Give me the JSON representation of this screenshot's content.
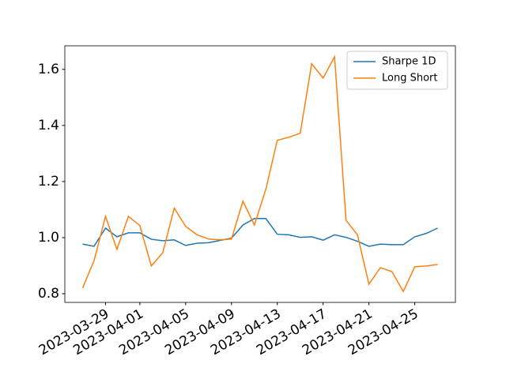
{
  "chart_data": {
    "type": "line",
    "x": [
      "2023-03-27",
      "2023-03-28",
      "2023-03-29",
      "2023-03-30",
      "2023-03-31",
      "2023-04-01",
      "2023-04-02",
      "2023-04-03",
      "2023-04-04",
      "2023-04-05",
      "2023-04-06",
      "2023-04-07",
      "2023-04-08",
      "2023-04-09",
      "2023-04-10",
      "2023-04-11",
      "2023-04-12",
      "2023-04-13",
      "2023-04-14",
      "2023-04-15",
      "2023-04-16",
      "2023-04-17",
      "2023-04-18",
      "2023-04-19",
      "2023-04-20",
      "2023-04-21",
      "2023-04-22",
      "2023-04-23",
      "2023-04-24",
      "2023-04-25",
      "2023-04-26",
      "2023-04-27"
    ],
    "series": [
      {
        "name": "Sharpe 1D",
        "color": "#1f77b4",
        "values": [
          0.977,
          0.969,
          1.034,
          1.003,
          1.017,
          1.017,
          0.994,
          0.989,
          0.992,
          0.972,
          0.98,
          0.982,
          0.99,
          0.998,
          1.045,
          1.068,
          1.068,
          1.012,
          1.01,
          1.001,
          1.003,
          0.991,
          1.01,
          1.001,
          0.987,
          0.969,
          0.977,
          0.975,
          0.975,
          1.003,
          1.015,
          1.034
        ]
      },
      {
        "name": "Long Short",
        "color": "#ff7f0e",
        "values": [
          0.82,
          0.918,
          1.076,
          0.958,
          1.076,
          1.043,
          0.899,
          0.946,
          1.105,
          1.04,
          1.01,
          0.995,
          0.992,
          0.995,
          1.13,
          1.045,
          1.172,
          1.347,
          1.358,
          1.372,
          1.62,
          1.569,
          1.645,
          1.062,
          1.01,
          0.834,
          0.893,
          0.879,
          0.808,
          0.896,
          0.899,
          0.904
        ]
      }
    ],
    "xlim": [
      "2023-03-25T10:48:00",
      "2023-04-28T13:12:00"
    ],
    "xticks": [
      "2023-03-29",
      "2023-04-01",
      "2023-04-05",
      "2023-04-09",
      "2023-04-13",
      "2023-04-17",
      "2023-04-21",
      "2023-04-25"
    ],
    "ylim": [
      0.769,
      1.684
    ],
    "yticks": [
      {
        "value": 0.8,
        "label": "0.8"
      },
      {
        "value": 1.0,
        "label": "1.0"
      },
      {
        "value": 1.2,
        "label": "1.2"
      },
      {
        "value": 1.4,
        "label": "1.4"
      },
      {
        "value": 1.6,
        "label": "1.6"
      }
    ],
    "legend": "upper right",
    "grid": false
  }
}
